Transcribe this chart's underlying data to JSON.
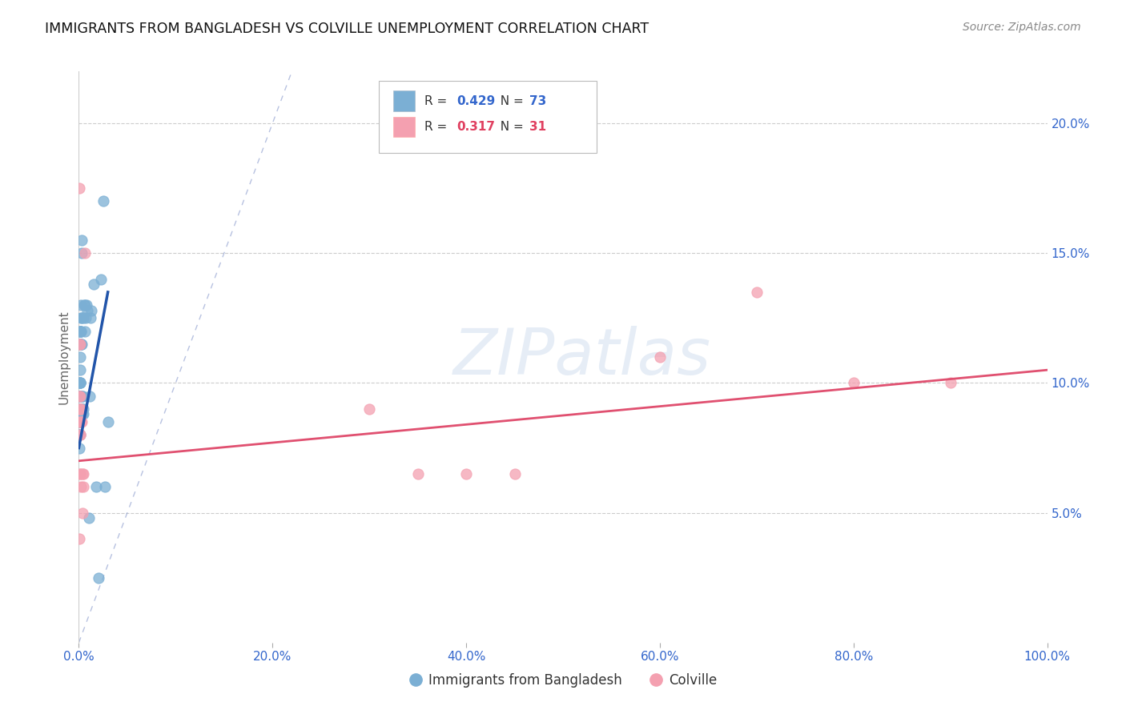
{
  "title": "IMMIGRANTS FROM BANGLADESH VS COLVILLE UNEMPLOYMENT CORRELATION CHART",
  "source": "Source: ZipAtlas.com",
  "ylabel": "Unemployment",
  "ylabel_right_ticks": [
    "5.0%",
    "10.0%",
    "15.0%",
    "20.0%"
  ],
  "ylabel_right_vals": [
    0.05,
    0.1,
    0.15,
    0.2
  ],
  "xlim": [
    0.0,
    1.0
  ],
  "ylim": [
    0.0,
    0.22
  ],
  "xticks": [
    0.0,
    0.2,
    0.4,
    0.6,
    0.8,
    1.0
  ],
  "xticklabels": [
    "0.0%",
    "20.0%",
    "40.0%",
    "60.0%",
    "80.0%",
    "100.0%"
  ],
  "legend_blue_R": "0.429",
  "legend_blue_N": "73",
  "legend_pink_R": "0.317",
  "legend_pink_N": "31",
  "legend_label_blue": "Immigrants from Bangladesh",
  "legend_label_pink": "Colville",
  "color_blue": "#7BAFD4",
  "color_pink": "#F4A0B0",
  "line_color_blue": "#2255AA",
  "line_color_pink": "#E05070",
  "watermark": "ZIPatlas",
  "blue_scatter_x": [
    0.0002,
    0.0003,
    0.0003,
    0.0004,
    0.0004,
    0.0005,
    0.0005,
    0.0005,
    0.0005,
    0.0006,
    0.0006,
    0.0006,
    0.0007,
    0.0007,
    0.0007,
    0.0008,
    0.0008,
    0.0008,
    0.0009,
    0.0009,
    0.0009,
    0.001,
    0.001,
    0.001,
    0.0011,
    0.0011,
    0.0012,
    0.0012,
    0.0013,
    0.0013,
    0.0014,
    0.0014,
    0.0015,
    0.0015,
    0.0016,
    0.0017,
    0.0018,
    0.0019,
    0.002,
    0.002,
    0.0021,
    0.0022,
    0.0023,
    0.0025,
    0.0027,
    0.0028,
    0.003,
    0.0032,
    0.0033,
    0.0035,
    0.0038,
    0.004,
    0.0042,
    0.0045,
    0.0048,
    0.005,
    0.0055,
    0.006,
    0.0065,
    0.007,
    0.008,
    0.009,
    0.01,
    0.011,
    0.012,
    0.013,
    0.015,
    0.018,
    0.02,
    0.023,
    0.025,
    0.027,
    0.03
  ],
  "blue_scatter_y": [
    0.09,
    0.085,
    0.075,
    0.09,
    0.08,
    0.095,
    0.09,
    0.085,
    0.08,
    0.095,
    0.09,
    0.08,
    0.095,
    0.09,
    0.08,
    0.1,
    0.095,
    0.085,
    0.1,
    0.095,
    0.08,
    0.105,
    0.1,
    0.09,
    0.11,
    0.095,
    0.115,
    0.1,
    0.12,
    0.09,
    0.115,
    0.095,
    0.12,
    0.1,
    0.12,
    0.115,
    0.125,
    0.115,
    0.13,
    0.095,
    0.12,
    0.115,
    0.09,
    0.12,
    0.115,
    0.155,
    0.15,
    0.125,
    0.09,
    0.095,
    0.09,
    0.088,
    0.095,
    0.088,
    0.09,
    0.125,
    0.13,
    0.12,
    0.13,
    0.125,
    0.13,
    0.128,
    0.048,
    0.095,
    0.125,
    0.128,
    0.138,
    0.06,
    0.025,
    0.14,
    0.17,
    0.06,
    0.085
  ],
  "pink_scatter_x": [
    0.0003,
    0.0004,
    0.0005,
    0.0006,
    0.0007,
    0.0008,
    0.0009,
    0.001,
    0.0011,
    0.0012,
    0.0013,
    0.0015,
    0.0016,
    0.0017,
    0.002,
    0.0022,
    0.0025,
    0.003,
    0.0035,
    0.004,
    0.0045,
    0.005,
    0.006,
    0.3,
    0.35,
    0.4,
    0.45,
    0.6,
    0.7,
    0.8,
    0.9
  ],
  "pink_scatter_y": [
    0.04,
    0.175,
    0.09,
    0.115,
    0.085,
    0.095,
    0.115,
    0.08,
    0.095,
    0.09,
    0.065,
    0.065,
    0.085,
    0.08,
    0.06,
    0.085,
    0.09,
    0.085,
    0.05,
    0.065,
    0.06,
    0.065,
    0.15,
    0.09,
    0.065,
    0.065,
    0.065,
    0.11,
    0.135,
    0.1,
    0.1
  ],
  "blue_line_x": [
    0.0,
    0.03
  ],
  "blue_line_y": [
    0.075,
    0.135
  ],
  "pink_line_x": [
    0.0,
    1.0
  ],
  "pink_line_y": [
    0.07,
    0.105
  ],
  "dashed_line_x": [
    0.0,
    0.22
  ],
  "dashed_line_y": [
    0.0,
    0.22
  ]
}
